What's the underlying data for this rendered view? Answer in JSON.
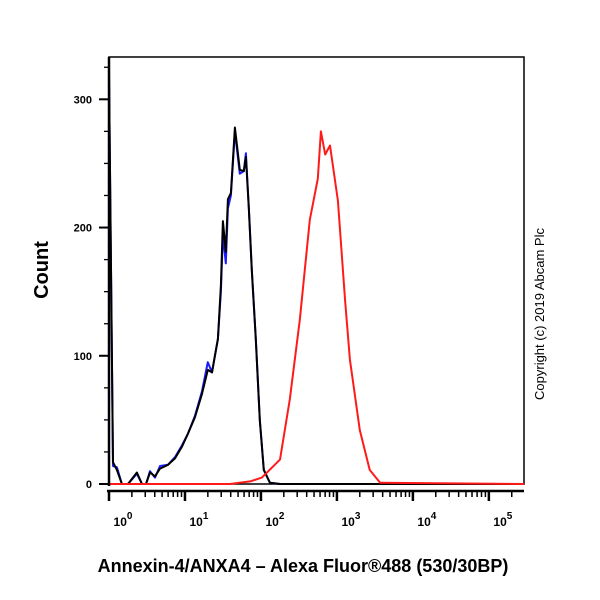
{
  "chart_data": {
    "type": "line",
    "title": "",
    "xlabel": "Annexin-4/ANXA4 – Alexa Fluor®488 (530/30BP)",
    "ylabel": "Count",
    "x_scale": "log",
    "xlim": [
      1,
      290000
    ],
    "ylim": [
      0,
      333
    ],
    "x_ticks": [
      {
        "base": "10",
        "exp": "0",
        "value": 1
      },
      {
        "base": "10",
        "exp": "1",
        "value": 10
      },
      {
        "base": "10",
        "exp": "2",
        "value": 100
      },
      {
        "base": "10",
        "exp": "3",
        "value": 1000
      },
      {
        "base": "10",
        "exp": "4",
        "value": 10000
      },
      {
        "base": "10",
        "exp": "5",
        "value": 100000
      }
    ],
    "y_ticks": [
      "0",
      "100",
      "200",
      "300"
    ],
    "grid": false,
    "legend": "none",
    "series": [
      {
        "color": "#1a1aff",
        "points": [
          [
            1,
            321
          ],
          [
            1.13,
            14
          ],
          [
            1.27,
            13
          ],
          [
            1.48,
            0
          ],
          [
            1.78,
            0
          ],
          [
            2.33,
            8
          ],
          [
            2.72,
            0
          ],
          [
            3.07,
            0
          ],
          [
            3.46,
            10
          ],
          [
            4.03,
            5
          ],
          [
            4.69,
            14
          ],
          [
            5.98,
            15
          ],
          [
            7.39,
            21
          ],
          [
            9.12,
            30
          ],
          [
            10.9,
            39
          ],
          [
            13.5,
            53
          ],
          [
            16.7,
            72
          ],
          [
            20,
            95
          ],
          [
            22.7,
            87
          ],
          [
            24.8,
            100
          ],
          [
            27.1,
            113
          ],
          [
            29.7,
            150
          ],
          [
            31.6,
            195
          ],
          [
            34.5,
            172
          ],
          [
            36.7,
            215
          ],
          [
            40.2,
            225
          ],
          [
            45.4,
            275
          ],
          [
            52.6,
            242
          ],
          [
            59.5,
            244
          ],
          [
            63.3,
            258
          ],
          [
            69.4,
            214
          ],
          [
            75.9,
            167
          ],
          [
            85.6,
            113
          ],
          [
            96.7,
            50
          ],
          [
            109,
            11
          ],
          [
            131,
            1
          ],
          [
            178,
            0
          ],
          [
            290000,
            0
          ]
        ]
      },
      {
        "color": "#000000",
        "points": [
          [
            1,
            321
          ],
          [
            1.13,
            17
          ],
          [
            1.27,
            11
          ],
          [
            1.48,
            0
          ],
          [
            1.78,
            0
          ],
          [
            2.33,
            9
          ],
          [
            2.72,
            0
          ],
          [
            3.07,
            0
          ],
          [
            3.46,
            9
          ],
          [
            4.03,
            6
          ],
          [
            4.69,
            12
          ],
          [
            5.98,
            15
          ],
          [
            7.39,
            20
          ],
          [
            9.12,
            29
          ],
          [
            10.9,
            39
          ],
          [
            13.5,
            52
          ],
          [
            16.7,
            70
          ],
          [
            20,
            89
          ],
          [
            22.7,
            87
          ],
          [
            24.8,
            100
          ],
          [
            27.1,
            113
          ],
          [
            29.7,
            155
          ],
          [
            31.6,
            205
          ],
          [
            34.5,
            181
          ],
          [
            36.7,
            222
          ],
          [
            40.2,
            227
          ],
          [
            45.4,
            278
          ],
          [
            52.6,
            245
          ],
          [
            59.5,
            244
          ],
          [
            63.3,
            255
          ],
          [
            69.4,
            214
          ],
          [
            75.9,
            167
          ],
          [
            85.6,
            113
          ],
          [
            96.7,
            50
          ],
          [
            109,
            11
          ],
          [
            131,
            1
          ],
          [
            178,
            0
          ],
          [
            290000,
            0
          ]
        ]
      },
      {
        "color": "#ff1a1a",
        "points": [
          [
            1,
            0
          ],
          [
            39,
            0
          ],
          [
            72,
            2
          ],
          [
            103,
            5
          ],
          [
            178,
            19
          ],
          [
            240,
            66
          ],
          [
            325,
            128
          ],
          [
            440,
            206
          ],
          [
            560,
            238
          ],
          [
            615,
            275
          ],
          [
            700,
            257
          ],
          [
            810,
            264
          ],
          [
            1030,
            221
          ],
          [
            1280,
            143
          ],
          [
            1480,
            97
          ],
          [
            2000,
            42
          ],
          [
            2700,
            11
          ],
          [
            3700,
            1
          ],
          [
            290000,
            0
          ]
        ]
      }
    ]
  },
  "copyright": "Copyright (c) 2019 Abcam Plc"
}
